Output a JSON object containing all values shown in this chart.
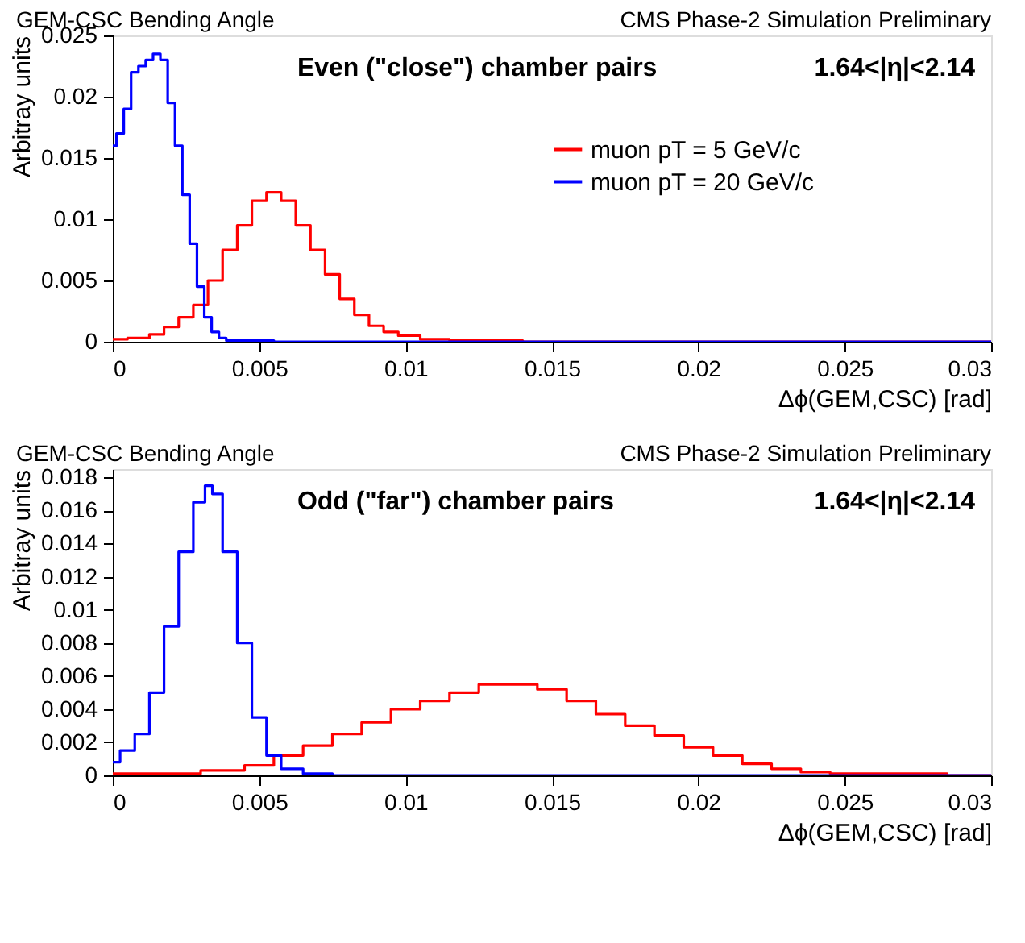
{
  "chart_data": [
    {
      "type": "step",
      "title": "GEM-CSC Bending Angle",
      "xlabel": "Δϕ(GEM,CSC) [rad]",
      "ylabel": "Arbitray units",
      "annotations": [
        "CMS Phase-2 Simulation Preliminary",
        "Even (\"close\") chamber pairs",
        "1.64<|η|<2.14"
      ],
      "xlim": [
        0,
        0.03
      ],
      "xticks": [
        0,
        0.005,
        0.01,
        0.015,
        0.02,
        0.025,
        0.03
      ],
      "ylim": [
        0,
        0.025
      ],
      "yticks": [
        0,
        0.005,
        0.01,
        0.015,
        0.02,
        0.025
      ],
      "grid": false,
      "legend": "right",
      "line_style": "solid",
      "marker": "none",
      "series": [
        {
          "name": "muon pT = 5 GeV/c",
          "color": "#ff0000",
          "x": [
            0,
            0.001,
            0.0015,
            0.002,
            0.0025,
            0.003,
            0.0035,
            0.004,
            0.0045,
            0.005,
            0.0055,
            0.006,
            0.0065,
            0.007,
            0.0075,
            0.008,
            0.0085,
            0.009,
            0.0095,
            0.01,
            0.011,
            0.012,
            0.013,
            0.015,
            0.03
          ],
          "values": [
            0.0002,
            0.0003,
            0.0006,
            0.0012,
            0.002,
            0.003,
            0.005,
            0.0075,
            0.0095,
            0.0115,
            0.0122,
            0.0115,
            0.0095,
            0.0075,
            0.0055,
            0.0035,
            0.0022,
            0.0013,
            0.0008,
            0.0005,
            0.0002,
            0.0001,
            0.0001,
            0,
            0
          ]
        },
        {
          "name": "muon pT = 20 GeV/c",
          "color": "#0000ff",
          "x": [
            0,
            0.00025,
            0.0005,
            0.00075,
            0.001,
            0.00125,
            0.0015,
            0.00175,
            0.002,
            0.00225,
            0.0025,
            0.00275,
            0.003,
            0.00325,
            0.0035,
            0.00375,
            0.004,
            0.005,
            0.006,
            0.03
          ],
          "values": [
            0.016,
            0.017,
            0.019,
            0.022,
            0.0225,
            0.023,
            0.0235,
            0.023,
            0.0195,
            0.016,
            0.012,
            0.008,
            0.0045,
            0.002,
            0.0008,
            0.0003,
            0.0001,
            0.0001,
            0,
            0
          ]
        }
      ]
    },
    {
      "type": "step",
      "title": "GEM-CSC Bending Angle",
      "xlabel": "Δϕ(GEM,CSC) [rad]",
      "ylabel": "Arbitray units",
      "annotations": [
        "CMS Phase-2 Simulation Preliminary",
        "Odd (\"far\") chamber pairs",
        "1.64<|η|<2.14"
      ],
      "xlim": [
        0,
        0.03
      ],
      "xticks": [
        0,
        0.005,
        0.01,
        0.015,
        0.02,
        0.025,
        0.03
      ],
      "ylim": [
        0,
        0.0185
      ],
      "yticks": [
        0,
        0.002,
        0.004,
        0.006,
        0.008,
        0.01,
        0.012,
        0.014,
        0.016,
        0.018
      ],
      "grid": false,
      "legend": "right",
      "line_style": "solid",
      "marker": "none",
      "series": [
        {
          "name": "muon pT = 5 GeV/c",
          "color": "#ff0000",
          "x": [
            0,
            0.002,
            0.004,
            0.005,
            0.006,
            0.007,
            0.008,
            0.009,
            0.01,
            0.011,
            0.012,
            0.013,
            0.014,
            0.015,
            0.016,
            0.017,
            0.018,
            0.019,
            0.02,
            0.021,
            0.022,
            0.023,
            0.024,
            0.025,
            0.027,
            0.03
          ],
          "values": [
            0.0001,
            0.0001,
            0.0003,
            0.0006,
            0.0012,
            0.0018,
            0.0025,
            0.0032,
            0.004,
            0.0045,
            0.005,
            0.0055,
            0.0055,
            0.0052,
            0.0045,
            0.0037,
            0.003,
            0.0024,
            0.0017,
            0.0012,
            0.0007,
            0.0004,
            0.0002,
            0.0001,
            0.0001,
            0
          ]
        },
        {
          "name": "muon pT = 20 GeV/c",
          "color": "#0000ff",
          "x": [
            0,
            0.0005,
            0.001,
            0.0015,
            0.002,
            0.0025,
            0.003,
            0.0033,
            0.0035,
            0.004,
            0.0045,
            0.005,
            0.0055,
            0.006,
            0.007,
            0.008,
            0.01,
            0.03
          ],
          "values": [
            0.0008,
            0.0015,
            0.0025,
            0.005,
            0.009,
            0.0135,
            0.0165,
            0.0175,
            0.017,
            0.0135,
            0.008,
            0.0035,
            0.0012,
            0.0004,
            0.0001,
            0,
            0,
            0
          ]
        }
      ]
    }
  ]
}
